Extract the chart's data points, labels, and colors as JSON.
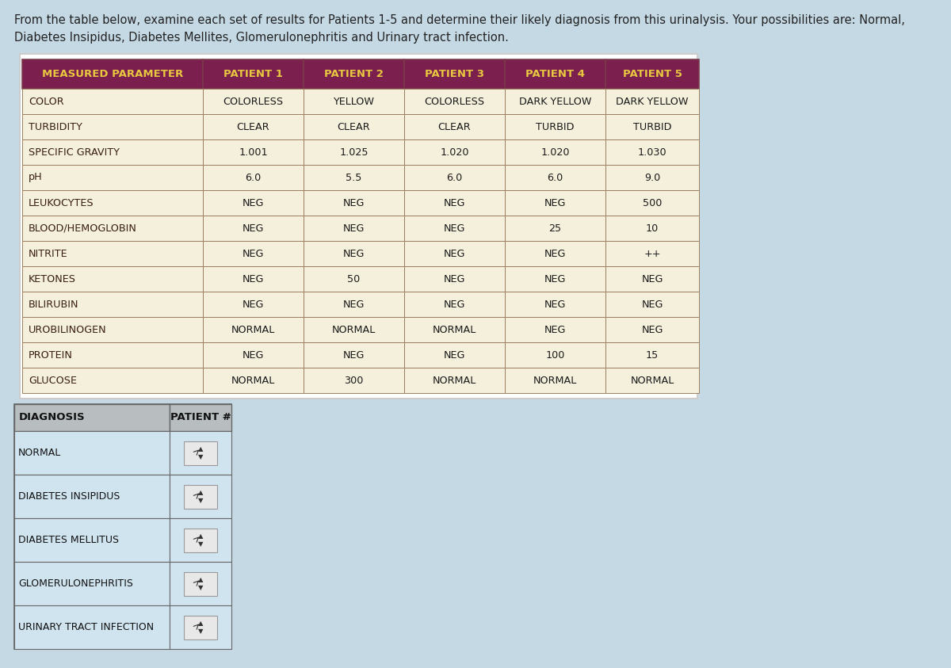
{
  "background_color": "#c5d9e5",
  "intro_text_line1": "From the table below, examine each set of results for Patients 1-5 and determine their likely diagnosis from this urinalysis. Your possibilities are: Normal,",
  "intro_text_line2": "Diabetes Insipidus, Diabetes Mellites, Glomerulonephritis and Urinary tract infection.",
  "header_bg": "#7b1f4e",
  "header_text_color": "#e8c840",
  "row_bg": "#f5f0dc",
  "border_color": "#7a3a4a",
  "cell_border": "#9a8060",
  "main_table_headers": [
    "MEASURED PARAMETER",
    "PATIENT 1",
    "PATIENT 2",
    "PATIENT 3",
    "PATIENT 4",
    "PATIENT 5"
  ],
  "main_table_rows": [
    [
      "COLOR",
      "COLORLESS",
      "YELLOW",
      "COLORLESS",
      "DARK YELLOW",
      "DARK YELLOW"
    ],
    [
      "TURBIDITY",
      "CLEAR",
      "CLEAR",
      "CLEAR",
      "TURBID",
      "TURBID"
    ],
    [
      "SPECIFIC GRAVITY",
      "1.001",
      "1.025",
      "1.020",
      "1.020",
      "1.030"
    ],
    [
      "pH",
      "6.0",
      "5.5",
      "6.0",
      "6.0",
      "9.0"
    ],
    [
      "LEUKOCYTES",
      "NEG",
      "NEG",
      "NEG",
      "NEG",
      "500"
    ],
    [
      "BLOOD/HEMOGLOBIN",
      "NEG",
      "NEG",
      "NEG",
      "25",
      "10"
    ],
    [
      "NITRITE",
      "NEG",
      "NEG",
      "NEG",
      "NEG",
      "++"
    ],
    [
      "KETONES",
      "NEG",
      "50",
      "NEG",
      "NEG",
      "NEG"
    ],
    [
      "BILIRUBIN",
      "NEG",
      "NEG",
      "NEG",
      "NEG",
      "NEG"
    ],
    [
      "UROBILINOGEN",
      "NORMAL",
      "NORMAL",
      "NORMAL",
      "NEG",
      "NEG"
    ],
    [
      "PROTEIN",
      "NEG",
      "NEG",
      "NEG",
      "100",
      "15"
    ],
    [
      "GLUCOSE",
      "NORMAL",
      "300",
      "NORMAL",
      "NORMAL",
      "NORMAL"
    ]
  ],
  "diag_headers": [
    "DIAGNOSIS",
    "PATIENT #"
  ],
  "diag_rows": [
    [
      "NORMAL",
      ""
    ],
    [
      "DIABETES INSIPIDUS",
      ""
    ],
    [
      "DIABETES MELLITUS",
      ""
    ],
    [
      "GLOMERULONEPHRITIS",
      ""
    ],
    [
      "URINARY TRACT INFECTION",
      ""
    ]
  ],
  "diag_header_bg": "#b8bec0",
  "diag_row_bg": "#d0e4f0",
  "diag_border": "#666666",
  "spinner_bg_top": "#e8e8e8",
  "spinner_bg_bot": "#c8c8c8",
  "spinner_border": "#999999",
  "white_bg": "#ffffff",
  "white_border": "#cccccc"
}
